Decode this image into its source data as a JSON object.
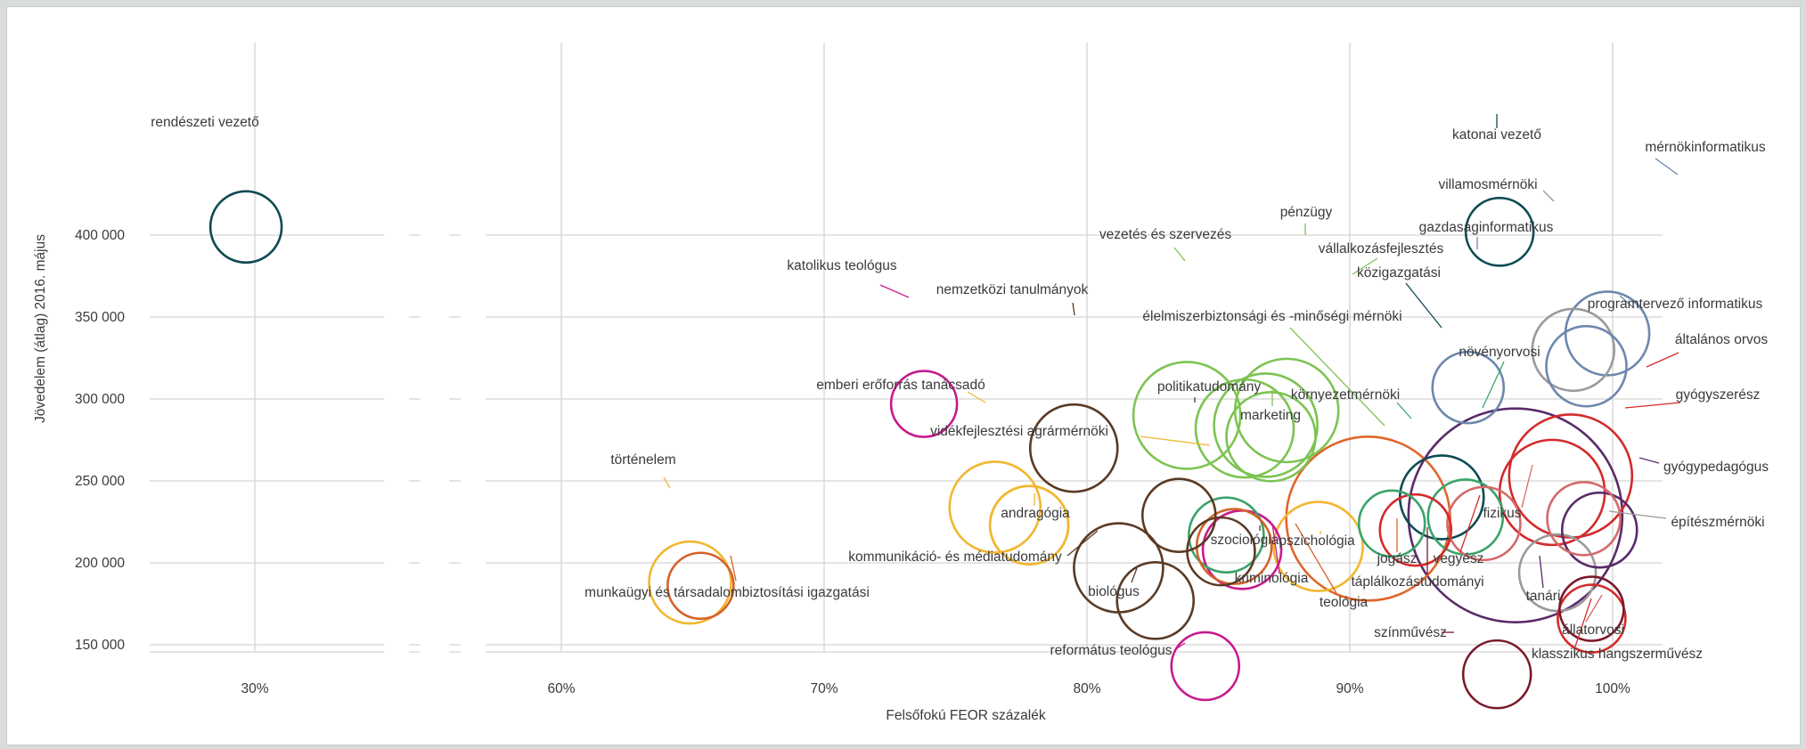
{
  "chart_data": {
    "type": "scatter",
    "title": "",
    "xlabel": "Felsőfokú FEOR százalék",
    "ylabel": "Jövedelem (átlag) 2016. május",
    "x_ticks": [
      {
        "value": 30,
        "label": "30%"
      },
      {
        "value": 60,
        "label": "60%"
      },
      {
        "value": 70,
        "label": "70%"
      },
      {
        "value": 80,
        "label": "80%"
      },
      {
        "value": 90,
        "label": "90%"
      },
      {
        "value": 100,
        "label": "100%"
      }
    ],
    "x_axis_break": [
      30,
      60
    ],
    "y_ticks": [
      {
        "value": 150000,
        "label": "150 000"
      },
      {
        "value": 200000,
        "label": "200 000"
      },
      {
        "value": 250000,
        "label": "250 000"
      },
      {
        "value": 300000,
        "label": "300 000"
      },
      {
        "value": 350000,
        "label": "350 000"
      },
      {
        "value": 400000,
        "label": "400 000"
      }
    ],
    "ylim": [
      122000,
      414000
    ],
    "grid": true,
    "points": [
      {
        "name": "rendészeti vezető",
        "x": 27.8,
        "y": 405000,
        "r": 40,
        "color": "#0d4a52"
      },
      {
        "name": "katonai vezető",
        "x": 95.7,
        "y": 402000,
        "r": 38,
        "color": "#0d4a52"
      },
      {
        "name": "mérnökinformatikus",
        "x": 99.8,
        "y": 340000,
        "r": 47,
        "color": "#6c88ad"
      },
      {
        "name": "villamosmérnöki",
        "x": 98.5,
        "y": 330000,
        "r": 46,
        "color": "#9a9a9a"
      },
      {
        "name": "programtervező informatikus",
        "x": 99.0,
        "y": 320000,
        "r": 45,
        "color": "#6c88ad"
      },
      {
        "name": "gazdaságinformatikus",
        "x": 94.5,
        "y": 307000,
        "r": 40,
        "color": "#6c88ad"
      },
      {
        "name": "katolikus teológus",
        "x": 73.8,
        "y": 297000,
        "r": 37,
        "color": "#c8198c"
      },
      {
        "name": "vezetés és szervezés",
        "x": 83.8,
        "y": 290000,
        "r": 60,
        "color": "#7dc352"
      },
      {
        "name": "pénzügy",
        "x": 87.6,
        "y": 293000,
        "r": 58,
        "color": "#7dc352"
      },
      {
        "name": "vállalkozásfejlesztés",
        "x": 86.8,
        "y": 284000,
        "r": 58,
        "color": "#7dc352"
      },
      {
        "name": "élelmiszerbiztonsági és -minőségi mérnöki",
        "x": 86.0,
        "y": 282000,
        "r": 55,
        "color": "#7dc352"
      },
      {
        "name": "marketing",
        "x": 87.0,
        "y": 277000,
        "r": 50,
        "color": "#7dc352"
      },
      {
        "name": "nemzetközi tanulmányok",
        "x": 79.5,
        "y": 270000,
        "r": 49,
        "color": "#5b3a24"
      },
      {
        "name": "emberi erőforrás tanácsadó",
        "x": 76.5,
        "y": 234000,
        "r": 51,
        "color": "#f2b630"
      },
      {
        "name": "vidékfejlesztési agrármérnöki",
        "x": 77.8,
        "y": 223000,
        "r": 44,
        "color": "#f2b630"
      },
      {
        "name": "andragógia",
        "x": 77.8,
        "y": 223000,
        "r": 44,
        "color": "#f2b630"
      },
      {
        "name": "politikatudomány",
        "x": 83.5,
        "y": 229000,
        "r": 41,
        "color": "#5b3a24"
      },
      {
        "name": "környezetmérnöki",
        "x": 91.6,
        "y": 224000,
        "r": 37,
        "color": "#3aa36a"
      },
      {
        "name": "közigazgatási",
        "x": 93.5,
        "y": 240000,
        "r": 47,
        "color": "#0d4a52"
      },
      {
        "name": "növényorvosi",
        "x": 94.4,
        "y": 228000,
        "r": 42,
        "color": "#3aa36a"
      },
      {
        "name": "pszichológia",
        "x": 88.8,
        "y": 210000,
        "r": 50,
        "color": "#f2b630"
      },
      {
        "name": "jogász",
        "x": 90.7,
        "y": 227000,
        "r": 92,
        "color": "#e0652a"
      },
      {
        "name": "vegyész",
        "x": 92.5,
        "y": 220000,
        "r": 40,
        "color": "#d42a2a"
      },
      {
        "name": "fizikus",
        "x": 95.1,
        "y": 224000,
        "r": 41,
        "color": "#d46a6a"
      },
      {
        "name": "tanári",
        "x": 96.3,
        "y": 229000,
        "r": 120,
        "color": "#5a2a6a"
      },
      {
        "name": "általános orvos",
        "x": 98.4,
        "y": 253000,
        "r": 69,
        "color": "#d42a2a"
      },
      {
        "name": "gyógyszerész",
        "x": 97.7,
        "y": 243000,
        "r": 59,
        "color": "#d42a2a"
      },
      {
        "name": "gyógypedagógus",
        "x": 99.5,
        "y": 220000,
        "r": 42,
        "color": "#5a2a6a"
      },
      {
        "name": "állatorvosi",
        "x": 98.9,
        "y": 227000,
        "r": 41,
        "color": "#d46a6a"
      },
      {
        "name": "építészmérnöki",
        "x": 97.9,
        "y": 194000,
        "r": 43,
        "color": "#9a9a9a"
      },
      {
        "name": "klasszikus hangszerművész",
        "x": 99.2,
        "y": 166000,
        "r": 38,
        "color": "#d42a2a"
      },
      {
        "name": "színművész",
        "x": 99.2,
        "y": 172000,
        "r": 36,
        "color": "#7a1a2a"
      },
      {
        "name": "táplálkozástudományi",
        "x": 95.6,
        "y": 132000,
        "r": 38,
        "color": "#7a1a2a"
      },
      {
        "name": "sociológia_z",
        "x": 85.3,
        "y": 217000,
        "r": 42,
        "color": "#3aa36a"
      },
      {
        "name": "kriminológia",
        "x": 85.9,
        "y": 208000,
        "r": 44,
        "color": "#c8198c"
      },
      {
        "name": "teológia",
        "x": 85.6,
        "y": 210000,
        "r": 42,
        "color": "#d4622a"
      },
      {
        "name": "szociológia",
        "x": 85.1,
        "y": 207000,
        "r": 38,
        "color": "#5b3a24"
      },
      {
        "name": "kommunikáció- és médiatudomány",
        "x": 81.2,
        "y": 197000,
        "r": 50,
        "color": "#5b3a24"
      },
      {
        "name": "biológus",
        "x": 82.6,
        "y": 177000,
        "r": 43,
        "color": "#5b3a24"
      },
      {
        "name": "református teológus",
        "x": 84.5,
        "y": 137000,
        "r": 38,
        "color": "#c8198c"
      },
      {
        "name": "történelem",
        "x": 64.9,
        "y": 188000,
        "r": 46,
        "color": "#f2b630"
      },
      {
        "name": "munkaügyi és társadalombiztosítási igazgatási",
        "x": 65.3,
        "y": 186000,
        "r": 37,
        "color": "#d4622a"
      }
    ],
    "labels": [
      {
        "text": "rendészeti vezető",
        "point": "rendészeti vezető"
      },
      {
        "text": "katonai vezető",
        "point": "katonai vezető"
      },
      {
        "text": "mérnökinformatikus",
        "point": "mérnökinformatikus"
      },
      {
        "text": "villamosmérnöki",
        "point": "villamosmérnöki"
      },
      {
        "text": "gazdaságinformatikus",
        "point": "gazdaságinformatikus"
      },
      {
        "text": "programtervező informatikus",
        "point": "programtervező informatikus"
      },
      {
        "text": "pénzügy",
        "point": "pénzügy"
      },
      {
        "text": "vezetés és szervezés",
        "point": "vezetés és szervezés"
      },
      {
        "text": "vállalkozásfejlesztés",
        "point": "vállalkozásfejlesztés"
      },
      {
        "text": "közigazgatási",
        "point": "közigazgatási"
      },
      {
        "text": "katolikus teológus",
        "point": "katolikus teológus"
      },
      {
        "text": "nemzetközi tanulmányok",
        "point": "nemzetközi tanulmányok"
      },
      {
        "text": "élelmiszerbiztonsági és -minőségi mérnöki",
        "point": "élelmiszerbiztonsági és -minőségi mérnöki"
      },
      {
        "text": "általános orvos",
        "point": "általános orvos"
      },
      {
        "text": "növényorvosi",
        "point": "növényorvosi"
      },
      {
        "text": "emberi erőforrás tanácsadó",
        "point": "emberi erőforrás tanácsadó"
      },
      {
        "text": "politikatudomány",
        "point": "politikatudomány"
      },
      {
        "text": "környezetmérnöki",
        "point": "környezetmérnöki"
      },
      {
        "text": "gyógyszerész",
        "point": "gyógyszerész"
      },
      {
        "text": "marketing",
        "point": "marketing"
      },
      {
        "text": "vidékfejlesztési agrármérnöki",
        "point": "vidékfejlesztési agrármérnöki"
      },
      {
        "text": "gyógypedagógus",
        "point": "gyógypedagógus"
      },
      {
        "text": "történelem",
        "point": "történelem"
      },
      {
        "text": "fizikus",
        "point": "fizikus"
      },
      {
        "text": "andragógia",
        "point": "andragógia"
      },
      {
        "text": "építészmérnöki",
        "point": "építészmérnöki"
      },
      {
        "text": "szociológia",
        "point": "szociológia"
      },
      {
        "text": "pszichológia",
        "point": "pszichológia"
      },
      {
        "text": "jogász",
        "point": "jogász"
      },
      {
        "text": "vegyész",
        "point": "vegyész"
      },
      {
        "text": "kommunikáció- és médiatudomány",
        "point": "kommunikáció- és médiatudomány"
      },
      {
        "text": "kriminológia",
        "point": "kriminológia"
      },
      {
        "text": "táplálkozástudományi",
        "point": "táplálkozástudományi"
      },
      {
        "text": "munkaügyi és társadalombiztosítási igazgatási",
        "point": "munkaügyi és társadalombiztosítási igazgatási"
      },
      {
        "text": "biológus",
        "point": "biológus"
      },
      {
        "text": "tanári",
        "point": "tanári"
      },
      {
        "text": "teológia",
        "point": "teológia"
      },
      {
        "text": "állatorvosi",
        "point": "állatorvosi"
      },
      {
        "text": "színművész",
        "point": "színművész"
      },
      {
        "text": "református teológus",
        "point": "református teológus"
      },
      {
        "text": "klasszikus hangszerművész",
        "point": "klasszikus hangszerművész"
      }
    ]
  }
}
